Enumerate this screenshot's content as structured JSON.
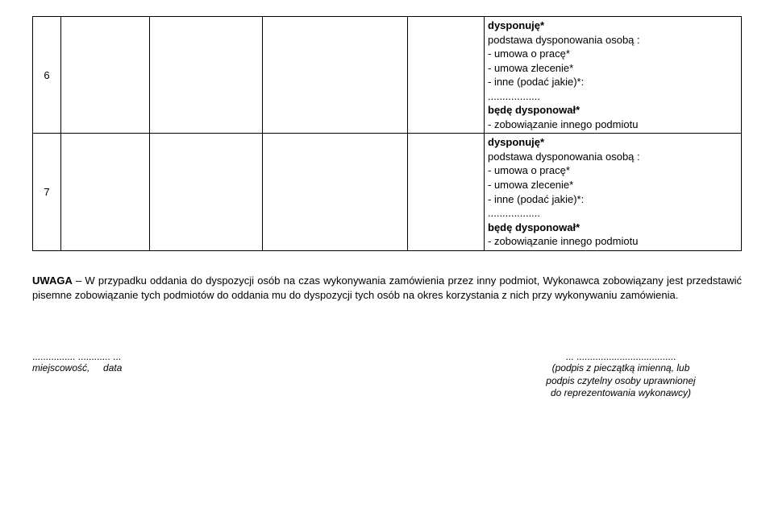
{
  "table": {
    "rows": [
      {
        "num": "6",
        "text_lines": {
          "l1": "dysponuję*",
          "l2": "podstawa dysponowania osobą :",
          "l3": "- umowa o pracę*",
          "l4": "- umowa zlecenie*",
          "l5": "- inne (podać jakie)*:",
          "l6": "..................",
          "l7": "będę dysponował*",
          "l8": "- zobowiązanie innego podmiotu"
        }
      },
      {
        "num": "7",
        "text_lines": {
          "l1": "dysponuję*",
          "l2": "podstawa dysponowania osobą :",
          "l3": "- umowa o pracę*",
          "l4": "- umowa zlecenie*",
          "l5": "- inne (podać jakie)*:",
          "l6": "..................",
          "l7": "będę dysponował*",
          "l8": "- zobowiązanie innego podmiotu"
        }
      }
    ]
  },
  "note": {
    "lead": "UWAGA",
    "body": " – W przypadku oddania do dyspozycji osób  na czas wykonywania zamówienia przez inny podmiot, Wykonawca zobowiązany jest przedstawić pisemne zobowiązanie tych podmiotów do oddania mu do dyspozycji tych osób na okres korzystania z nich przy wykonywaniu zamówienia."
  },
  "signature": {
    "left_dots": "................  ............ ...",
    "left_label": "miejscowość,     data",
    "right_dots": "... .....................................",
    "right_l1": "(podpis z pieczątką imienną, lub",
    "right_l2": "podpis czytelny osoby uprawnionej",
    "right_l3": "do reprezentowania wykonawcy)"
  }
}
